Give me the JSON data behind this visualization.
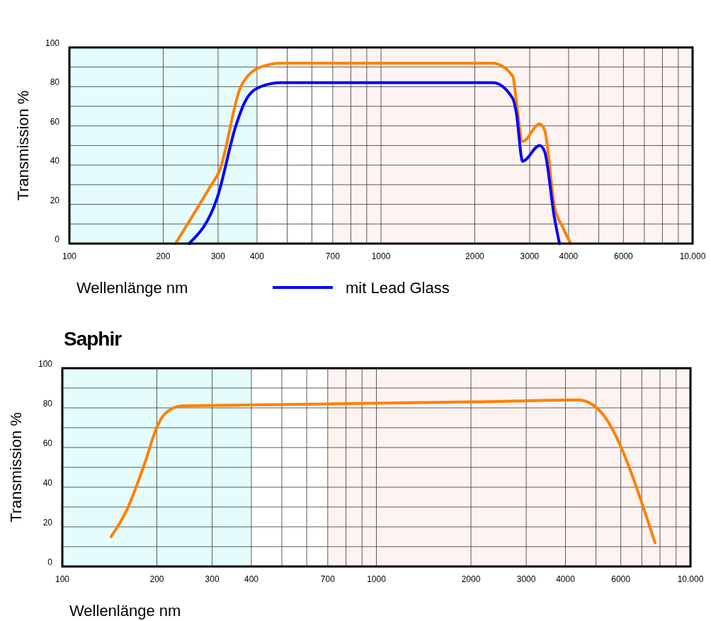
{
  "chart_data": [
    {
      "type": "line",
      "xlabel": "Wellenlänge  nm",
      "ylabel": "Transmission %",
      "log": "x",
      "grid": true,
      "legend": "bottom",
      "line_style": "solid",
      "marker": "none",
      "xlim": [
        100,
        10000
      ],
      "ylim": [
        0,
        100
      ],
      "xticks": [
        100,
        200,
        300,
        400,
        {
          "value": 500,
          "label": null
        },
        {
          "value": 600,
          "label": null
        },
        700,
        {
          "value": 800,
          "label": null
        },
        {
          "value": 900,
          "label": null
        },
        1000,
        2000,
        3000,
        4000,
        {
          "value": 5000,
          "label": null
        },
        6000,
        {
          "value": 7000,
          "label": null
        },
        {
          "value": 8000,
          "label": null
        },
        {
          "value": 9000,
          "label": null
        },
        {
          "value": 10000,
          "label": "10.000"
        }
      ],
      "yticks": [
        0,
        {
          "value": 10,
          "label": null
        },
        20,
        {
          "value": 30,
          "label": null
        },
        40,
        {
          "value": 50,
          "label": null
        },
        60,
        {
          "value": 70,
          "label": null
        },
        80,
        {
          "value": 90,
          "label": null
        },
        100
      ],
      "bands": [
        {
          "axis": "x",
          "from": 100,
          "to": 400,
          "color": "#e4fcfc"
        },
        {
          "axis": "x",
          "from": 700,
          "to": 10000,
          "color": "#fdf3f1"
        }
      ],
      "series": [
        {
          "color": "#ff8000",
          "x": [
            219,
            283,
            303,
            355,
            411,
            478,
            2286,
            2647,
            2717,
            2848,
            3230,
            3349,
            3604,
            3840,
            4065
          ],
          "values": [
            0,
            29,
            37,
            80,
            90,
            92,
            92,
            85.5,
            73,
            52,
            61,
            58,
            19,
            8,
            0
          ]
        },
        {
          "name": "mit Lead Glass",
          "color": "#0000ff",
          "x": [
            242,
            299,
            342,
            368,
            411,
            478,
            2286,
            2647,
            2717,
            2848,
            3230,
            3349,
            3604,
            3740
          ],
          "values": [
            0,
            24,
            60,
            73,
            80,
            82,
            82,
            74,
            67,
            42,
            50,
            47,
            13,
            0
          ]
        }
      ]
    },
    {
      "type": "line",
      "title": "Saphir",
      "xlabel": "Wellenlänge  nm",
      "ylabel": "Transmission %",
      "log": "x",
      "grid": true,
      "line_style": "solid",
      "marker": "none",
      "xlim": [
        100,
        10000
      ],
      "ylim": [
        0,
        100
      ],
      "xticks": [
        100,
        200,
        300,
        400,
        {
          "value": 500,
          "label": null
        },
        {
          "value": 600,
          "label": null
        },
        700,
        {
          "value": 800,
          "label": null
        },
        {
          "value": 900,
          "label": null
        },
        1000,
        2000,
        3000,
        4000,
        {
          "value": 5000,
          "label": null
        },
        6000,
        {
          "value": 7000,
          "label": null
        },
        {
          "value": 8000,
          "label": null
        },
        {
          "value": 9000,
          "label": null
        },
        {
          "value": 10000,
          "label": "10.000"
        }
      ],
      "yticks": [
        0,
        {
          "value": 10,
          "label": null
        },
        20,
        {
          "value": 30,
          "label": null
        },
        40,
        {
          "value": 50,
          "label": null
        },
        60,
        {
          "value": 70,
          "label": null
        },
        80,
        {
          "value": 90,
          "label": null
        },
        100
      ],
      "bands": [
        {
          "axis": "x",
          "from": 100,
          "to": 400,
          "color": "#e4fcfc"
        },
        {
          "axis": "x",
          "from": 700,
          "to": 10000,
          "color": "#fdf3f1"
        }
      ],
      "series": [
        {
          "color": "#ff8000",
          "x": [
            143,
            161,
            182,
            201,
            212,
            240,
            400,
            690,
            2000,
            4400,
            5145,
            7710
          ],
          "values": [
            15,
            29,
            51,
            71,
            77,
            81,
            81.5,
            82,
            83,
            84,
            78.5,
            12
          ]
        }
      ]
    }
  ]
}
